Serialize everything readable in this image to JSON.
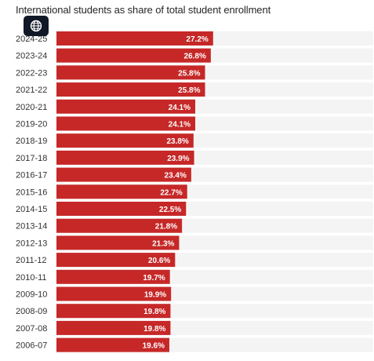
{
  "page_title": "International students as share of total student enrollment",
  "chart_data": {
    "type": "bar",
    "orientation": "horizontal",
    "categories": [
      "2024-25",
      "2023-24",
      "2022-23",
      "2021-22",
      "2020-21",
      "2019-20",
      "2018-19",
      "2017-18",
      "2016-17",
      "2015-16",
      "2014-15",
      "2013-14",
      "2012-13",
      "2011-12",
      "2010-11",
      "2009-10",
      "2008-09",
      "2007-08",
      "2006-07"
    ],
    "values": [
      27.2,
      26.8,
      25.8,
      25.8,
      24.1,
      24.1,
      23.8,
      23.9,
      23.4,
      22.7,
      22.5,
      21.8,
      21.3,
      20.6,
      19.7,
      19.9,
      19.8,
      19.8,
      19.6
    ],
    "data_labels": [
      "27.2%",
      "26.8%",
      "25.8%",
      "25.8%",
      "24.1%",
      "24.1%",
      "23.8%",
      "23.9%",
      "23.4%",
      "22.7%",
      "22.5%",
      "21.8%",
      "21.3%",
      "20.6%",
      "19.7%",
      "19.9%",
      "19.8%",
      "19.8%",
      "19.6%"
    ],
    "title": "International students as share of total student enrollment",
    "xlim": [
      0,
      55
    ],
    "grid": false,
    "colors": {
      "bar": "#c62828",
      "track": "#f4f4f4"
    }
  },
  "overlay_badge": {
    "icon": "globe-icon",
    "color": "#111827"
  }
}
